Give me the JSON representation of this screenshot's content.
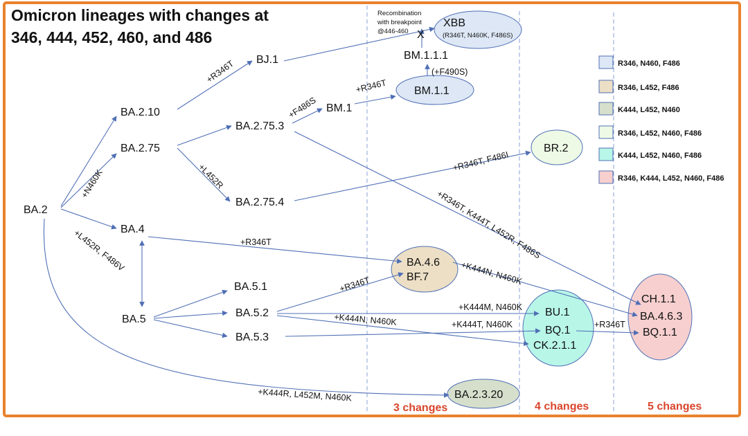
{
  "title_lines": [
    "Omicron lineages with changes at",
    "346, 444, 452, 460, and 486"
  ],
  "colors": {
    "border": "#e9822f",
    "edge": "#4f6fb5",
    "changes_text": "#d9452b",
    "cat_R346_N460_F486": "#dde7f5",
    "cat_R346_L452_F486": "#ecdfc5",
    "cat_K444_L452_N460": "#d6dfcc",
    "cat_R346_L452_N460_F486": "#eefae6",
    "cat_K444_L452_N460_F486": "#b8f6e8",
    "cat_R346_K444_L452_N460_F486": "#f7cfcf"
  },
  "nodes": {
    "BA2": "BA.2",
    "BA210": "BA.2.10",
    "BJ1": "BJ.1",
    "BA275": "BA.2.75",
    "BA2753": "BA.2.75.3",
    "BM1": "BM.1",
    "BM11": "BM.1.1",
    "BM111": "BM.1.1.1",
    "X": "X",
    "XBB": "XBB",
    "XBB_sub": "(R346T, N460K, F486S)",
    "BR2": "BR.2",
    "BA2754": "BA.2.75.4",
    "BA4": "BA.4",
    "BA5": "BA.5",
    "BA51": "BA.5.1",
    "BA52": "BA.5.2",
    "BA53": "BA.5.3",
    "BA46": "BA.4.6",
    "BF7": "BF.7",
    "BU1": "BU.1",
    "BQ1": "BQ.1",
    "CK211": "CK.2.1.1",
    "CH11": "CH.1.1",
    "BA463": "BA.4.6.3",
    "BQ11": "BQ.1.1",
    "BA2320": "BA.2.3.20"
  },
  "edge_labels": {
    "n460k": "+N460K",
    "r346t_bj1": "+R346T",
    "f486s": "+F486S",
    "r346t_bm1": "+R346T",
    "f490s": "(+F490S)",
    "r346t_f486i": "+R346T, F486I",
    "l452r": "+L452R",
    "l452r_f486v": "+L452R, F486V",
    "r346t_ba4": "+R346T",
    "r346t_ba52": "+R346T",
    "k444n_n460k_ba46": "+K444N, N460K",
    "k444m_n460k": "+K444M, N460K",
    "k444n_n460k_ba52": "+K444N, N460K",
    "k444t_n460k": "+K444T, N460K",
    "r346t_bq1": "+R346T",
    "multi_ch11": "+R346T, K444T, L452R, F486S",
    "k444r": "+K444R, L452M, N460K"
  },
  "recombination_note": [
    "Recombination",
    "with breakpoint",
    "@446-460"
  ],
  "legend": [
    {
      "label": "R346, N460, F486",
      "color": "#dde7f5"
    },
    {
      "label": "R346, L452, F486",
      "color": "#ecdfc5"
    },
    {
      "label": "K444, L452, N460",
      "color": "#d6dfcc"
    },
    {
      "label": "R346, L452, N460, F486",
      "color": "#eefae6"
    },
    {
      "label": "K444, L452, N460, F486",
      "color": "#b8f6e8"
    },
    {
      "label": "R346, K444, L452, N460, F486",
      "color": "#f7cfcf"
    }
  ],
  "change_columns": [
    "3 changes",
    "4 changes",
    "5 changes"
  ]
}
